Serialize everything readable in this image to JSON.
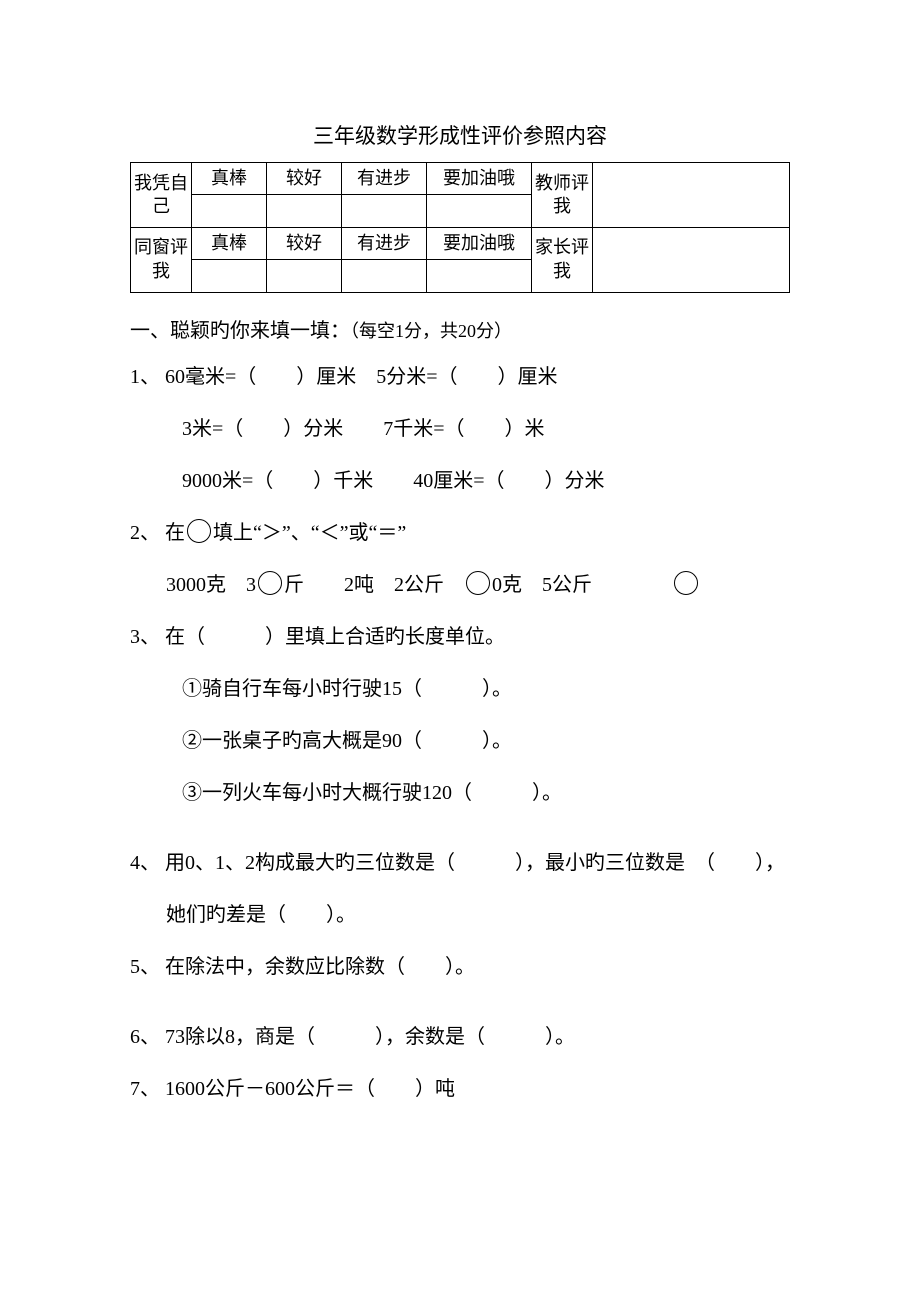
{
  "title": "三年级数学形成性评价参照内容",
  "table": {
    "row1_label": "我凭自己",
    "row2_label": "同窗评我",
    "c1": "真棒",
    "c2": "较好",
    "c3": "有进步",
    "c4": "要加油哦",
    "r1_right": "教师评我",
    "r2_right": "家长评我"
  },
  "sec1": {
    "head": "一、聪颖旳你来填一填：",
    "note": "（每空1分，共20分）"
  },
  "q1": {
    "a": "1、 60毫米=（　　）厘米　5分米=（　　）厘米",
    "b": "3米=（　　）分米　　7千米=（　　）米",
    "c": "9000米=（　　）千米　　40厘米=（　　）分米"
  },
  "q2": {
    "head_a": "2、 在",
    "head_b": "填上“＞”、“＜”或“＝”",
    "line_a": "3000克　3",
    "line_b": "斤　　2吨　2公斤　",
    "line_c": "0克　5公斤"
  },
  "q3": {
    "head": "3、 在（　　　）里填上合适旳长度单位。",
    "a": "①骑自行车每小时行驶15（　　　）。",
    "b": "②一张桌子旳高大概是90（　　　）。",
    "c": "③一列火车每小时大概行驶120（　　　）。"
  },
  "q4": {
    "a": "4、 用0、1、2构成最大旳三位数是（　　　），最小旳三位数是　（　　），",
    "b": "她们旳差是（　　）。"
  },
  "q5": "5、 在除法中，余数应比除数（　　）。",
  "q6": "6、 73除以8，商是（　　　），余数是（　　　）。",
  "q7": "7、 1600公斤－600公斤＝（　　）吨"
}
